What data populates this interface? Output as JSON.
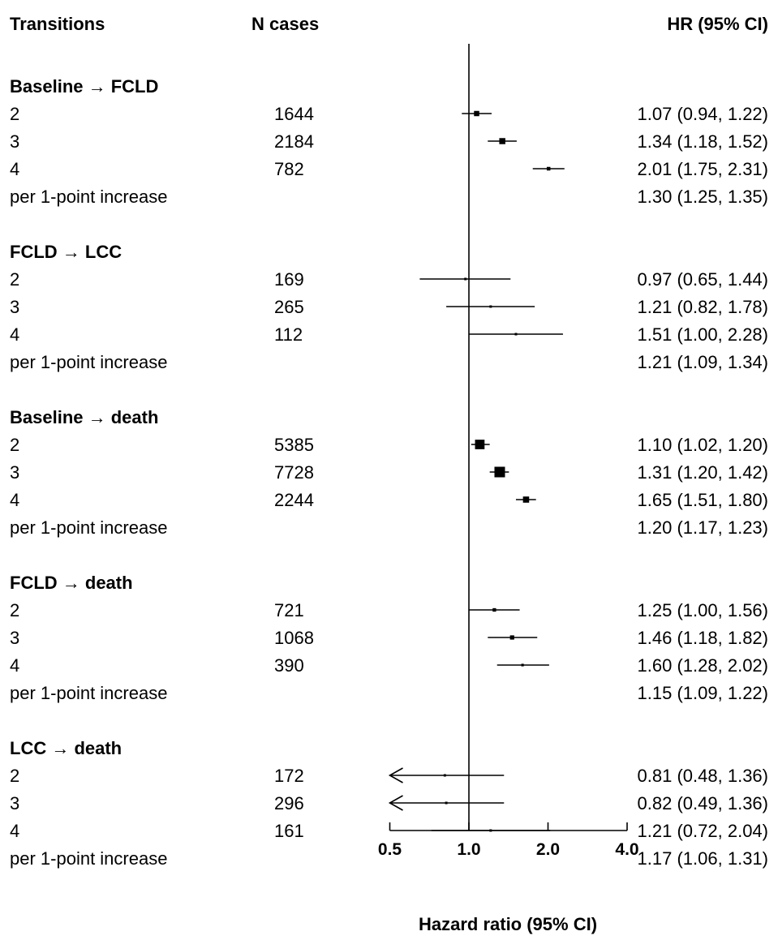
{
  "chart_data": {
    "type": "forest",
    "columns": {
      "label": "Transitions",
      "n": "N cases",
      "hr": "HR (95% CI)"
    },
    "xlabel": "Hazard ratio (95% CI)",
    "x_scale": "log",
    "xlim": [
      0.5,
      4.0
    ],
    "reference_line": 1.0,
    "x_ticks": [
      {
        "value": 0.5,
        "label": "0.5"
      },
      {
        "value": 1.0,
        "label": "1.0"
      },
      {
        "value": 2.0,
        "label": "2.0"
      },
      {
        "value": 4.0,
        "label": "4.0"
      }
    ],
    "groups": [
      {
        "title": "Baseline → FCLD",
        "rows": [
          {
            "label": "2",
            "n": "1644",
            "hr": 1.07,
            "lo": 0.94,
            "hi": 1.22,
            "text": "1.07 (0.94, 1.22)"
          },
          {
            "label": "3",
            "n": "2184",
            "hr": 1.34,
            "lo": 1.18,
            "hi": 1.52,
            "text": "1.34 (1.18, 1.52)"
          },
          {
            "label": "4",
            "n": "782",
            "hr": 2.01,
            "lo": 1.75,
            "hi": 2.31,
            "text": "2.01 (1.75, 2.31)"
          },
          {
            "label": "per 1-point increase",
            "n": "",
            "hr": 1.3,
            "lo": 1.25,
            "hi": 1.35,
            "text": "1.30 (1.25, 1.35)",
            "plotted": false
          }
        ]
      },
      {
        "title": "FCLD → LCC",
        "rows": [
          {
            "label": "2",
            "n": "169",
            "hr": 0.97,
            "lo": 0.65,
            "hi": 1.44,
            "text": "0.97 (0.65, 1.44)"
          },
          {
            "label": "3",
            "n": "265",
            "hr": 1.21,
            "lo": 0.82,
            "hi": 1.78,
            "text": "1.21 (0.82, 1.78)"
          },
          {
            "label": "4",
            "n": "112",
            "hr": 1.51,
            "lo": 1.0,
            "hi": 2.28,
            "text": "1.51 (1.00, 2.28)"
          },
          {
            "label": "per 1-point increase",
            "n": "",
            "hr": 1.21,
            "lo": 1.09,
            "hi": 1.34,
            "text": "1.21 (1.09, 1.34)",
            "plotted": false
          }
        ]
      },
      {
        "title": "Baseline → death",
        "rows": [
          {
            "label": "2",
            "n": "5385",
            "hr": 1.1,
            "lo": 1.02,
            "hi": 1.2,
            "text": "1.10 (1.02, 1.20)"
          },
          {
            "label": "3",
            "n": "7728",
            "hr": 1.31,
            "lo": 1.2,
            "hi": 1.42,
            "text": "1.31 (1.20, 1.42)"
          },
          {
            "label": "4",
            "n": "2244",
            "hr": 1.65,
            "lo": 1.51,
            "hi": 1.8,
            "text": "1.65 (1.51, 1.80)"
          },
          {
            "label": "per 1-point increase",
            "n": "",
            "hr": 1.2,
            "lo": 1.17,
            "hi": 1.23,
            "text": "1.20 (1.17, 1.23)",
            "plotted": false
          }
        ]
      },
      {
        "title": "FCLD → death",
        "rows": [
          {
            "label": "2",
            "n": "721",
            "hr": 1.25,
            "lo": 1.0,
            "hi": 1.56,
            "text": "1.25 (1.00, 1.56)"
          },
          {
            "label": "3",
            "n": "1068",
            "hr": 1.46,
            "lo": 1.18,
            "hi": 1.82,
            "text": "1.46 (1.18, 1.82)"
          },
          {
            "label": "4",
            "n": "390",
            "hr": 1.6,
            "lo": 1.28,
            "hi": 2.02,
            "text": "1.60 (1.28, 2.02)"
          },
          {
            "label": "per 1-point increase",
            "n": "",
            "hr": 1.15,
            "lo": 1.09,
            "hi": 1.22,
            "text": "1.15 (1.09, 1.22)",
            "plotted": false
          }
        ]
      },
      {
        "title": "LCC → death",
        "rows": [
          {
            "label": "2",
            "n": "172",
            "hr": 0.81,
            "lo": 0.48,
            "hi": 1.36,
            "text": "0.81 (0.48, 1.36)"
          },
          {
            "label": "3",
            "n": "296",
            "hr": 0.82,
            "lo": 0.49,
            "hi": 1.36,
            "text": "0.82 (0.49, 1.36)"
          },
          {
            "label": "4",
            "n": "161",
            "hr": 1.21,
            "lo": 0.72,
            "hi": 2.04,
            "text": "1.21 (0.72, 2.04)"
          },
          {
            "label": "per 1-point increase",
            "n": "",
            "hr": 1.17,
            "lo": 1.06,
            "hi": 1.31,
            "text": "1.17 (1.06, 1.31)",
            "plotted": false
          }
        ]
      }
    ],
    "colors": {
      "ink": "#000000",
      "background": "#ffffff"
    }
  }
}
